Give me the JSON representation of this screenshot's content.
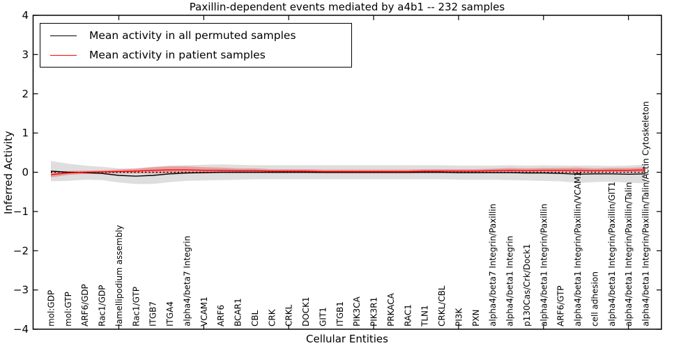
{
  "chart_data": {
    "type": "line",
    "title": "Paxillin-dependent events mediated by a4b1 -- 232 samples",
    "xlabel": "Cellular Entities",
    "ylabel": "Inferred Activity",
    "ylim": [
      -4,
      4
    ],
    "yticks": [
      4,
      3,
      2,
      1,
      0,
      -1,
      -2,
      -3,
      -4
    ],
    "grid": false,
    "legend_position": "upper-left",
    "zero_line": {
      "value": 0,
      "style": "dotted",
      "color": "#000000"
    },
    "x_major_tick_indices": [
      4,
      9,
      14,
      19,
      24,
      29,
      34
    ],
    "categories": [
      "mol:GDP",
      "mol:GTP",
      "ARF6/GDP",
      "Rac1/GDP",
      "lamellipodium assembly",
      "Rac1/GTP",
      "ITGB7",
      "ITGA4",
      "alpha4/beta7 Integrin",
      "VCAM1",
      "ARF6",
      "BCAR1",
      "CBL",
      "CRK",
      "CRKL",
      "DOCK1",
      "GIT1",
      "ITGB1",
      "PIK3CA",
      "PIK3R1",
      "PRKACA",
      "RAC1",
      "TLN1",
      "CRKL/CBL",
      "PI3K",
      "PXN",
      "alpha4/beta7 Integrin/Paxillin",
      "alpha4/beta1 Integrin",
      "p130Cas/Crk/Dock1",
      "alpha4/beta1 Integrin/Paxillin",
      "ARF6/GTP",
      "alpha4/beta1 Integrin/Paxillin/VCAM1",
      "cell adhesion",
      "alpha4/beta1 Integrin/Paxillin/GIT1",
      "alpha4/beta1 Integrin/Paxillin/Talin",
      "alpha4/beta1 Integrin/Paxillin/Talin/Actin Cytoskeleton"
    ],
    "series": [
      {
        "name": "Mean activity in all permuted samples",
        "color": "#000000",
        "line_style": "solid",
        "values": [
          0.03,
          0.0,
          -0.01,
          -0.03,
          -0.08,
          -0.1,
          -0.08,
          -0.04,
          -0.02,
          -0.01,
          0.0,
          0.0,
          0.0,
          0.0,
          0.0,
          0.0,
          0.0,
          0.0,
          0.0,
          0.0,
          0.0,
          0.0,
          0.0,
          0.0,
          -0.01,
          -0.01,
          -0.01,
          -0.01,
          -0.02,
          -0.02,
          -0.03,
          -0.05,
          -0.04,
          -0.04,
          -0.05,
          -0.04
        ],
        "band_halfwidth": [
          0.26,
          0.22,
          0.18,
          0.17,
          0.18,
          0.2,
          0.22,
          0.21,
          0.2,
          0.2,
          0.2,
          0.19,
          0.18,
          0.18,
          0.18,
          0.18,
          0.18,
          0.18,
          0.18,
          0.18,
          0.18,
          0.18,
          0.18,
          0.18,
          0.18,
          0.18,
          0.18,
          0.19,
          0.19,
          0.2,
          0.2,
          0.22,
          0.21,
          0.2,
          0.22,
          0.24
        ],
        "band_color": "rgba(0,0,0,0.13)"
      },
      {
        "name": "Mean activity in patient samples",
        "color": "#ff0000",
        "line_style": "solid",
        "values": [
          -0.06,
          -0.02,
          0.0,
          0.01,
          0.02,
          0.03,
          0.05,
          0.06,
          0.06,
          0.05,
          0.05,
          0.04,
          0.04,
          0.03,
          0.03,
          0.03,
          0.02,
          0.02,
          0.02,
          0.02,
          0.02,
          0.02,
          0.03,
          0.03,
          0.03,
          0.03,
          0.04,
          0.05,
          0.04,
          0.05,
          0.05,
          0.05,
          0.04,
          0.05,
          0.05,
          0.06
        ],
        "band_halfwidth": [
          0.07,
          0.05,
          0.04,
          0.04,
          0.05,
          0.06,
          0.08,
          0.09,
          0.09,
          0.08,
          0.07,
          0.06,
          0.06,
          0.05,
          0.05,
          0.05,
          0.05,
          0.05,
          0.05,
          0.05,
          0.05,
          0.05,
          0.05,
          0.05,
          0.05,
          0.05,
          0.05,
          0.06,
          0.06,
          0.06,
          0.06,
          0.07,
          0.06,
          0.06,
          0.06,
          0.07
        ],
        "band_color": "rgba(255,0,0,0.28)"
      }
    ]
  }
}
